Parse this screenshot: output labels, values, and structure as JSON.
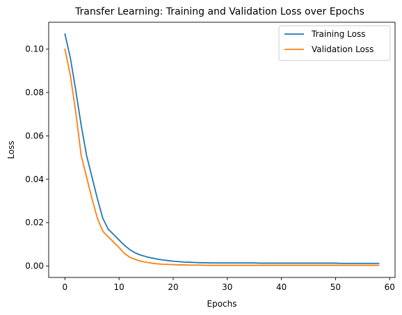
{
  "chart_data": {
    "type": "line",
    "title": "Transfer Learning: Training and Validation Loss over Epochs",
    "xlabel": "Epochs",
    "ylabel": "Loss",
    "xlim": [
      -3,
      61
    ],
    "ylim": [
      -0.0053,
      0.1124
    ],
    "xticks": [
      0,
      10,
      20,
      30,
      40,
      50,
      60
    ],
    "xtick_labels": [
      "0",
      "10",
      "20",
      "30",
      "40",
      "50",
      "60"
    ],
    "yticks": [
      0.0,
      0.02,
      0.04,
      0.06,
      0.08,
      0.1
    ],
    "ytick_labels": [
      "0.00",
      "0.02",
      "0.04",
      "0.06",
      "0.08",
      "0.10"
    ],
    "grid": false,
    "legend_position": "top-right",
    "x": [
      0,
      1,
      2,
      3,
      4,
      5,
      6,
      7,
      8,
      9,
      10,
      11,
      12,
      13,
      14,
      15,
      16,
      17,
      18,
      19,
      20,
      21,
      22,
      23,
      24,
      25,
      26,
      27,
      28,
      29,
      30,
      31,
      32,
      33,
      34,
      35,
      36,
      37,
      38,
      39,
      40,
      41,
      42,
      43,
      44,
      45,
      46,
      47,
      48,
      49,
      50,
      51,
      52,
      53,
      54,
      55,
      56,
      57,
      58
    ],
    "series": [
      {
        "name": "Training Loss",
        "color": "#1f77b4",
        "values": [
          0.107,
          0.096,
          0.081,
          0.065,
          0.051,
          0.041,
          0.031,
          0.022,
          0.017,
          0.0145,
          0.012,
          0.0095,
          0.0075,
          0.006,
          0.005,
          0.0043,
          0.0037,
          0.0032,
          0.0028,
          0.0025,
          0.0022,
          0.002,
          0.0018,
          0.0017,
          0.0016,
          0.0015,
          0.0015,
          0.0014,
          0.0014,
          0.0014,
          0.0014,
          0.0014,
          0.0014,
          0.0014,
          0.0014,
          0.0014,
          0.0013,
          0.0013,
          0.0013,
          0.0013,
          0.0013,
          0.0013,
          0.0013,
          0.0013,
          0.0013,
          0.0013,
          0.0013,
          0.0013,
          0.0013,
          0.0013,
          0.0013,
          0.0012,
          0.0012,
          0.0012,
          0.0012,
          0.0012,
          0.0012,
          0.0012,
          0.0012
        ]
      },
      {
        "name": "Validation Loss",
        "color": "#ff7f0e",
        "values": [
          0.1,
          0.088,
          0.071,
          0.051,
          0.041,
          0.031,
          0.022,
          0.016,
          0.0135,
          0.011,
          0.0085,
          0.0058,
          0.004,
          0.003,
          0.0022,
          0.0017,
          0.0013,
          0.001,
          0.0008,
          0.0007,
          0.0006,
          0.0005,
          0.0005,
          0.0004,
          0.0004,
          0.0004,
          0.0003,
          0.0003,
          0.0003,
          0.0003,
          0.0003,
          0.0003,
          0.0003,
          0.0003,
          0.0003,
          0.0003,
          0.0003,
          0.0003,
          0.0003,
          0.0003,
          0.0003,
          0.0003,
          0.0003,
          0.0003,
          0.0003,
          0.0003,
          0.0003,
          0.0003,
          0.0003,
          0.0003,
          0.0003,
          0.0003,
          0.0003,
          0.0003,
          0.0003,
          0.0003,
          0.0003,
          0.0003,
          0.0003
        ]
      }
    ]
  }
}
